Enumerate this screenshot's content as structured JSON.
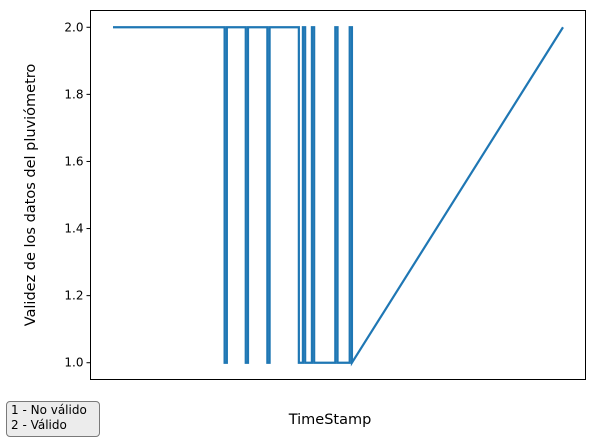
{
  "chart_data": {
    "type": "line",
    "title": "",
    "xlabel": "TimeStamp",
    "ylabel": "Validez de los datos del pluviómetro",
    "xlim": [
      0,
      100
    ],
    "ylim": [
      0.95,
      2.05
    ],
    "yticks": [
      "1.0",
      "1.2",
      "1.4",
      "1.6",
      "1.8",
      "2.0"
    ],
    "ytick_values": [
      1.0,
      1.2,
      1.4,
      1.6,
      1.8,
      2.0
    ],
    "grid": false,
    "legend": "none",
    "line_color": "#1f77b4",
    "series": [
      {
        "x": [
          0,
          24.8,
          24.8,
          25.3,
          25.3,
          29.5,
          29.5,
          30.0,
          30.0,
          34.3,
          34.3,
          34.8,
          34.8,
          41.3,
          41.3,
          42.2,
          42.2,
          42.7,
          42.7,
          44.2,
          44.2,
          44.7,
          44.7,
          49.4,
          49.4,
          49.9,
          49.9,
          52.6,
          52.6,
          53.1,
          53.1,
          100
        ],
        "y": [
          2,
          2,
          1,
          1,
          2,
          2,
          1,
          1,
          2,
          2,
          1,
          1,
          2,
          2,
          1,
          1,
          2,
          2,
          1,
          1,
          2,
          2,
          1,
          1,
          2,
          2,
          1,
          1,
          2,
          2,
          1,
          2
        ]
      }
    ]
  },
  "note": {
    "lines": [
      "1 - No válido",
      "2 - Válido"
    ]
  }
}
